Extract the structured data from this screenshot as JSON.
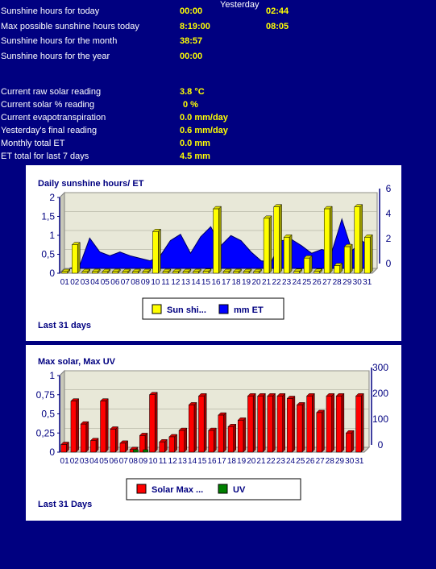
{
  "stats": {
    "yesterday_header": "Yesterday",
    "rows": [
      {
        "label": "Sunshine hours for today",
        "value": "00:00",
        "yesterday": "02:44"
      },
      {
        "label": "Max possible sunshine hours today",
        "value": "8:19:00",
        "yesterday": "08:05"
      },
      {
        "label": "Sunshine hours for the month",
        "value": "38:57",
        "yesterday": ""
      },
      {
        "label": "Sunshine hours for the year",
        "value": "00:00",
        "yesterday": ""
      }
    ],
    "readings": [
      {
        "label": "Current raw solar reading",
        "value": "3.8 °C"
      },
      {
        "label": "Current solar % reading",
        "value": "0 %"
      },
      {
        "label": "Current evapotranspiration",
        "value": "0.0 mm/day"
      },
      {
        "label": "Yesterday's final reading",
        "value": "0.6 mm/day"
      },
      {
        "label": "Monthly total ET",
        "value": "0.0 mm"
      },
      {
        "label": "ET total for last 7 days",
        "value": "4.5 mm"
      }
    ]
  },
  "colors": {
    "background": "#000080",
    "label_text": "#ffffff",
    "value_text": "#ffff00",
    "sun_bar": "#ffff00",
    "et_area": "#0000ff",
    "solar_bar": "#ff0000",
    "uv_bar": "#008000",
    "plot_bg": "#e8e8d8"
  },
  "chart_data": [
    {
      "type": "bar",
      "title": "Daily sunshine hours/ ET",
      "footer": "Last 31 days",
      "categories": [
        "01",
        "02",
        "03",
        "04",
        "05",
        "06",
        "07",
        "08",
        "09",
        "10",
        "11",
        "12",
        "13",
        "14",
        "15",
        "16",
        "17",
        "18",
        "19",
        "20",
        "21",
        "22",
        "23",
        "24",
        "25",
        "26",
        "27",
        "28",
        "29",
        "30",
        "31"
      ],
      "y_ticks": [
        "2",
        "1,5",
        "1",
        "0,5",
        "0"
      ],
      "y2_ticks": [
        "6",
        "4",
        "2",
        "0"
      ],
      "ylim": [
        0,
        2
      ],
      "y2lim": [
        0,
        6
      ],
      "series": [
        {
          "name": "Sun shi...",
          "kind": "bar",
          "axis": "left",
          "values": [
            0,
            0.75,
            0,
            0,
            0,
            0,
            0,
            0,
            0,
            1.1,
            0,
            0,
            0,
            0,
            0.05,
            1.7,
            0,
            0,
            0,
            0,
            1.45,
            1.75,
            0.95,
            0.05,
            0.4,
            0.05,
            1.7,
            0.2,
            0.7,
            1.75,
            0.95
          ]
        },
        {
          "name": "mm ET",
          "kind": "area",
          "axis": "right",
          "values": [
            0,
            0.2,
            2.4,
            1.3,
            1.0,
            1.3,
            1.0,
            0.8,
            0.6,
            1.0,
            2.2,
            2.7,
            1.2,
            2.5,
            3.3,
            1.8,
            2.6,
            2.2,
            1.3,
            0.6,
            0.5,
            2.2,
            2.3,
            1.8,
            1.2,
            1.5,
            1.3,
            3.9,
            1.4,
            2.2,
            1.5
          ]
        }
      ],
      "legend": [
        "Sun shi...",
        "mm ET"
      ]
    },
    {
      "type": "bar",
      "title": "Max solar, Max UV",
      "footer": "Last 31 Days",
      "categories": [
        "01",
        "02",
        "03",
        "04",
        "05",
        "06",
        "07",
        "08",
        "09",
        "10",
        "11",
        "12",
        "13",
        "14",
        "15",
        "16",
        "17",
        "18",
        "19",
        "20",
        "21",
        "22",
        "23",
        "24",
        "25",
        "26",
        "27",
        "28",
        "29",
        "30",
        "31"
      ],
      "y_ticks": [
        "1",
        "0,75",
        "0,5",
        "0,25",
        "0"
      ],
      "y2_ticks": [
        "300",
        "200",
        "100",
        "0"
      ],
      "ylim": [
        0,
        1
      ],
      "y2lim": [
        0,
        300
      ],
      "series": [
        {
          "name": "Solar Max ...",
          "kind": "bar",
          "axis": "right",
          "values": [
            30,
            200,
            110,
            45,
            200,
            90,
            35,
            10,
            65,
            225,
            40,
            60,
            85,
            185,
            220,
            85,
            145,
            100,
            125,
            220,
            220,
            220,
            220,
            210,
            185,
            220,
            155,
            220,
            220,
            75,
            220
          ]
        },
        {
          "name": "UV",
          "kind": "bar",
          "axis": "left",
          "values": [
            0,
            0,
            0,
            0,
            0,
            0,
            0,
            0.02,
            0.02,
            0,
            0,
            0,
            0,
            0,
            0,
            0,
            0,
            0,
            0,
            0,
            0,
            0,
            0,
            0,
            0,
            0,
            0,
            0,
            0,
            0,
            0
          ]
        }
      ],
      "legend": [
        "Solar Max ...",
        "UV"
      ]
    }
  ]
}
